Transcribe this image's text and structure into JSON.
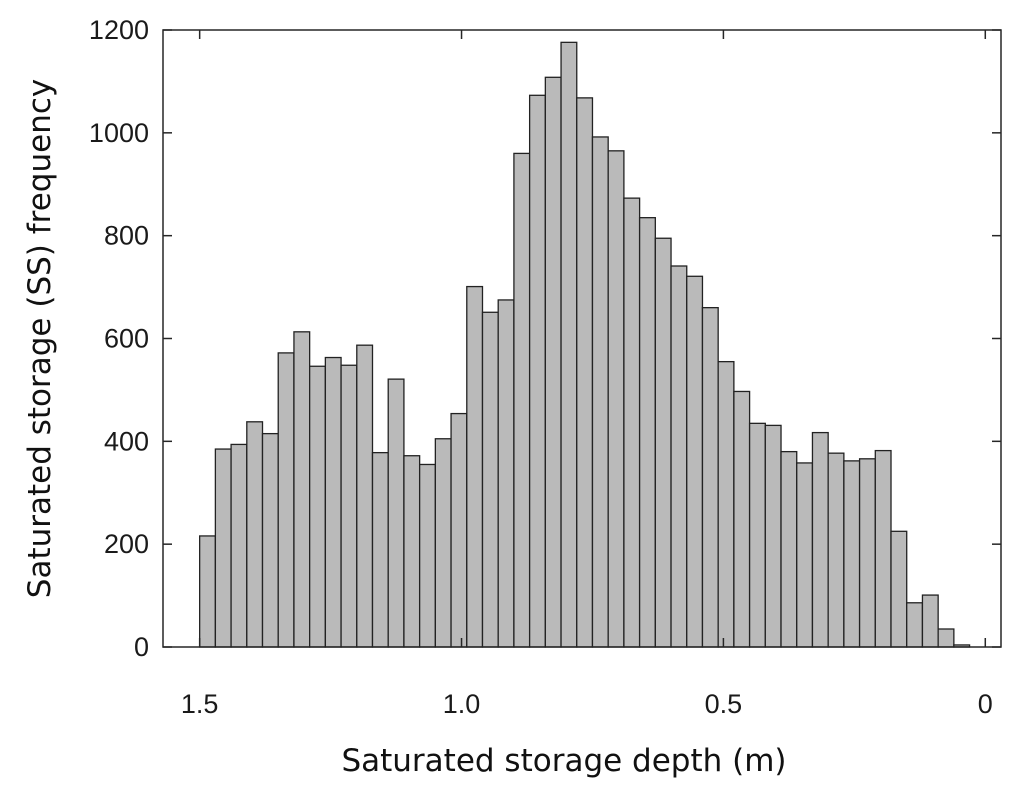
{
  "chart_data": {
    "type": "bar",
    "xlabel": "Saturated storage depth (m)",
    "ylabel": "Saturated storage (SS) frequency",
    "xlim": [
      1.57,
      -0.03
    ],
    "ylim": [
      0,
      1200
    ],
    "x_reversed": true,
    "x_ticks": [
      1.5,
      1.0,
      0.5,
      0
    ],
    "x_tick_labels": [
      "1.5",
      "1.0",
      "0.5",
      "0"
    ],
    "y_ticks": [
      0,
      200,
      400,
      600,
      800,
      1000,
      1200
    ],
    "y_tick_labels": [
      "0",
      "200",
      "400",
      "600",
      "800",
      "1000",
      "1200"
    ],
    "grid": false,
    "bin_width": 0.03,
    "bins_left_edge_start": 1.5,
    "values": [
      216,
      385,
      394,
      438,
      415,
      572,
      613,
      546,
      563,
      548,
      587,
      378,
      521,
      372,
      355,
      405,
      454,
      701,
      651,
      675,
      960,
      1073,
      1108,
      1176,
      1068,
      992,
      965,
      873,
      835,
      795,
      741,
      721,
      660,
      555,
      497,
      435,
      431,
      380,
      358,
      417,
      377,
      362,
      366,
      382,
      225,
      86,
      101,
      35,
      4
    ],
    "colors": {
      "bar_fill": "#bababa",
      "bar_edge": "#222222",
      "axis": "#262626"
    }
  }
}
